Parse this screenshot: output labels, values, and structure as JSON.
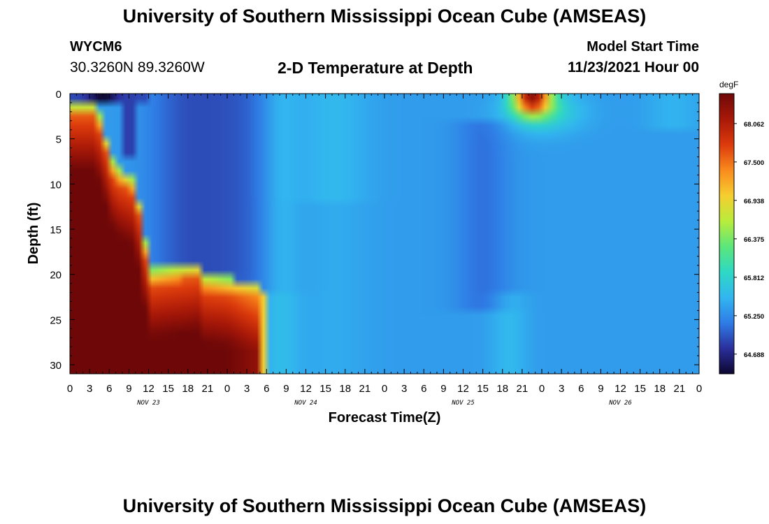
{
  "header": {
    "title": "University of Southern Mississippi Ocean Cube (AMSEAS)",
    "station_id": "WYCM6",
    "station_coords": "30.3260N  89.3260W",
    "plot_title": "2-D Temperature at Depth",
    "model_start_label": "Model Start Time",
    "model_start_value": "11/23/2021 Hour 00"
  },
  "footer": {
    "title": "University of Southern Mississippi Ocean Cube (AMSEAS)"
  },
  "chart_data": {
    "type": "heatmap",
    "title": "2-D Temperature at Depth",
    "xlabel": "Forecast Time(Z)",
    "ylabel": "Depth (ft)",
    "x_range_hours": [
      0,
      96
    ],
    "y_range_ft": [
      0,
      31
    ],
    "y_inverted": true,
    "x_tick_labels": [
      "0",
      "3",
      "6",
      "9",
      "12",
      "15",
      "18",
      "21",
      "0",
      "3",
      "6",
      "9",
      "12",
      "15",
      "18",
      "21",
      "0",
      "3",
      "6",
      "9",
      "12",
      "15",
      "18",
      "21",
      "0",
      "3",
      "6",
      "9",
      "12",
      "15",
      "18",
      "21",
      "0"
    ],
    "y_tick_labels": [
      "0",
      "5",
      "10",
      "15",
      "20",
      "25",
      "30"
    ],
    "y_tick_values": [
      0,
      5,
      10,
      15,
      20,
      25,
      30
    ],
    "day_labels": [
      {
        "label": "NOV 23",
        "hour": 12
      },
      {
        "label": "NOV 24",
        "hour": 36
      },
      {
        "label": "NOV 25",
        "hour": 60
      },
      {
        "label": "NOV 26",
        "hour": 84
      }
    ],
    "colorbar": {
      "unit": "degF",
      "min": 64.4,
      "max": 68.5,
      "tick_labels": [
        "68.062",
        "67.500",
        "66.938",
        "66.375",
        "65.812",
        "65.250",
        "64.688"
      ],
      "tick_values": [
        68.062,
        67.5,
        66.938,
        66.375,
        65.812,
        65.25,
        64.688
      ],
      "colors": [
        "#0d0630",
        "#2b2f9c",
        "#2f7ce6",
        "#32b6f0",
        "#2ed9c4",
        "#5ce67a",
        "#b9ec3c",
        "#f6ce30",
        "#f98a1d",
        "#dc3a0c",
        "#a81808",
        "#6e0808"
      ]
    },
    "field": {
      "nx": 96,
      "ny": 31,
      "description_columns": "hourly temperature (degF) by depth, depth 0 at top",
      "series": [
        {
          "name": "surface_cold_band_hours_4_7",
          "values": [
            64.4,
            64.5,
            64.6
          ]
        },
        {
          "name": "warm_deep_layer_thickness_hours_0_30",
          "values": [
            28,
            27,
            26,
            25,
            23,
            21,
            10,
            9
          ]
        }
      ]
    }
  }
}
